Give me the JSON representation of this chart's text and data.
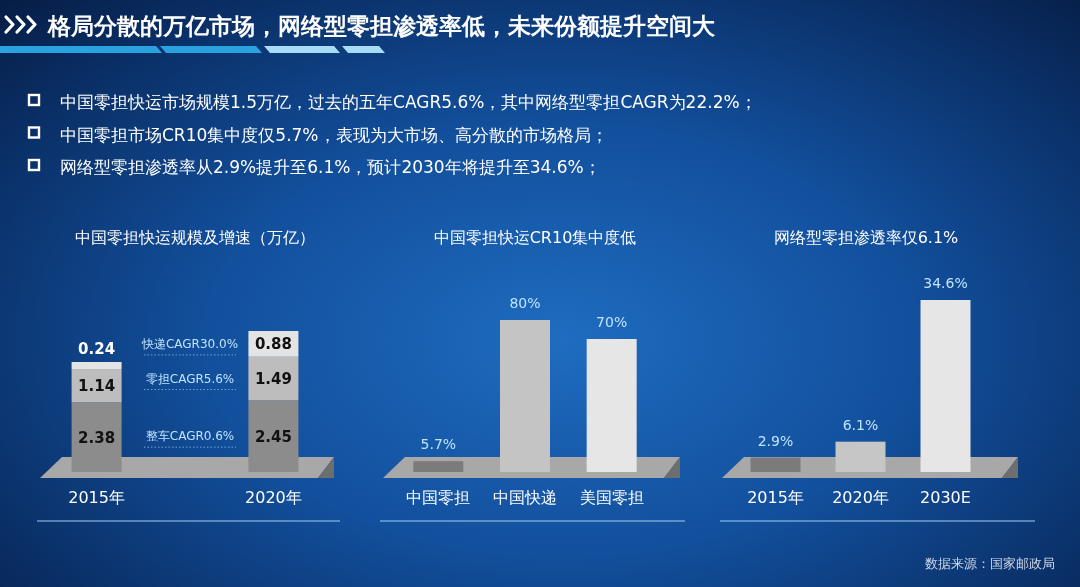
{
  "chart_data": [
    {
      "type": "other",
      "title": "格局分散的万亿市场，网络型零担渗透率低，未来份额提升空间大",
      "annotations": [
        "中国零担快运市场规模1.5万亿，过去的五年CAGR5.6%，其中网络型零担CAGR为22.2%；",
        "中国零担市场CR10集中度仅5.7%，表现为大市场、高分散的市场格局；",
        "网络型零担渗透率从2.9%提升至6.1%，预计2030年将提升至34.6%；"
      ]
    },
    {
      "type": "bar",
      "title": "中国零担快运规模及增速（万亿）",
      "categories": [
        "2015年",
        "2020年"
      ],
      "stacked": true,
      "data_labels": true,
      "series": [
        {
          "name": "整车CAGR0.6%",
          "color": "#8c8c8c",
          "values": [
            2.38,
            2.45
          ]
        },
        {
          "name": "零担CAGR5.6%",
          "color": "#bdbdbd",
          "values": [
            1.14,
            1.49
          ]
        },
        {
          "name": "快递CAGR30.0%",
          "color": "#e4e4e4",
          "values": [
            0.24,
            0.88
          ]
        }
      ]
    },
    {
      "type": "bar",
      "title": "中国零担快运CR10集中度低",
      "categories": [
        "中国零担",
        "中国快递",
        "美国零担"
      ],
      "values": [
        5.7,
        80,
        70
      ],
      "colors": [
        "#7b7b7b",
        "#c4c4c4",
        "#e6e6e6"
      ],
      "value_labels": [
        "5.7%",
        "80%",
        "70%"
      ]
    },
    {
      "type": "bar",
      "title": "网络型零担渗透率仅6.1%",
      "categories": [
        "2015年",
        "2020年",
        "2030E"
      ],
      "values": [
        2.9,
        6.1,
        34.6
      ],
      "colors": [
        "#7b7b7b",
        "#c6c6c6",
        "#e6e6e6"
      ],
      "value_labels": [
        "2.9%",
        "6.1%",
        "34.6%"
      ],
      "annotations": [
        "数据来源：国家邮政局"
      ]
    }
  ]
}
